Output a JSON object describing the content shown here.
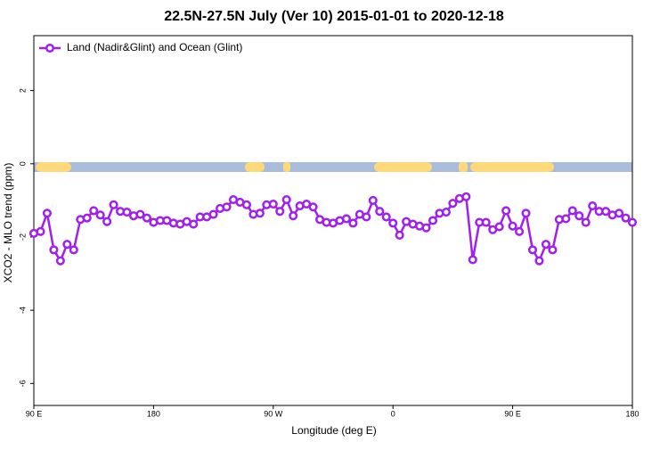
{
  "chart_data": {
    "type": "line",
    "title": "22.5N-27.5N July (Ver 10)   2015-01-01 to 2020-12-18",
    "x_label": "Longitude (deg E)",
    "y_label": "XCO2 - MLO trend (ppm)",
    "x": [
      90,
      95,
      100,
      105,
      110,
      115,
      120,
      125,
      130,
      135,
      140,
      145,
      150,
      155,
      160,
      165,
      170,
      175,
      180,
      185,
      190,
      195,
      200,
      205,
      210,
      215,
      220,
      225,
      230,
      235,
      240,
      245,
      250,
      255,
      260,
      265,
      270,
      275,
      280,
      285,
      290,
      295,
      300,
      305,
      310,
      315,
      320,
      325,
      330,
      335,
      340,
      345,
      350,
      355,
      360,
      365,
      370,
      375,
      380,
      385,
      390,
      395,
      400,
      405,
      410,
      415,
      420,
      425,
      430,
      435,
      440,
      445,
      450,
      455,
      460,
      465,
      470,
      475,
      480,
      485,
      490,
      495,
      500,
      505,
      510,
      515,
      520,
      525,
      530,
      535,
      540
    ],
    "series": [
      {
        "name": "Land (Nadir&Glint) and Ocean (Glint)",
        "color": "#a020f0",
        "values": [
          -1.9,
          -1.85,
          -1.35,
          -2.35,
          -2.65,
          -2.2,
          -2.35,
          -1.52,
          -1.48,
          -1.28,
          -1.4,
          -1.58,
          -1.12,
          -1.3,
          -1.32,
          -1.42,
          -1.38,
          -1.48,
          -1.6,
          -1.55,
          -1.55,
          -1.62,
          -1.65,
          -1.58,
          -1.65,
          -1.45,
          -1.45,
          -1.38,
          -1.22,
          -1.18,
          -0.98,
          -1.05,
          -1.12,
          -1.38,
          -1.35,
          -1.12,
          -1.1,
          -1.3,
          -0.98,
          -1.42,
          -1.15,
          -1.1,
          -1.18,
          -1.52,
          -1.6,
          -1.62,
          -1.55,
          -1.5,
          -1.62,
          -1.38,
          -1.45,
          -1.0,
          -1.3,
          -1.45,
          -1.62,
          -1.95,
          -1.58,
          -1.65,
          -1.7,
          -1.75,
          -1.55,
          -1.35,
          -1.32,
          -1.08,
          -0.95,
          -0.9,
          -2.62,
          -1.6,
          -1.6,
          -1.8,
          -1.72,
          -1.28,
          -1.7,
          -1.85,
          -1.35,
          -2.35,
          -2.65,
          -2.2,
          -2.35,
          -1.52,
          -1.5,
          -1.28,
          -1.42,
          -1.6,
          -1.15,
          -1.3,
          -1.3,
          -1.4,
          -1.35,
          -1.48,
          -1.6
        ]
      }
    ],
    "xlim": [
      90,
      540
    ],
    "xticks": [
      {
        "value": 90,
        "label": "90 E"
      },
      {
        "value": 180,
        "label": "180"
      },
      {
        "value": 270,
        "label": "90 W"
      },
      {
        "value": 360,
        "label": "0"
      },
      {
        "value": 450,
        "label": "90 E"
      },
      {
        "value": 540,
        "label": "180"
      }
    ],
    "ylim": [
      -6.6,
      3.5
    ],
    "yticks": [
      -6,
      -4,
      -2,
      0,
      2
    ],
    "legend": "top-left"
  }
}
